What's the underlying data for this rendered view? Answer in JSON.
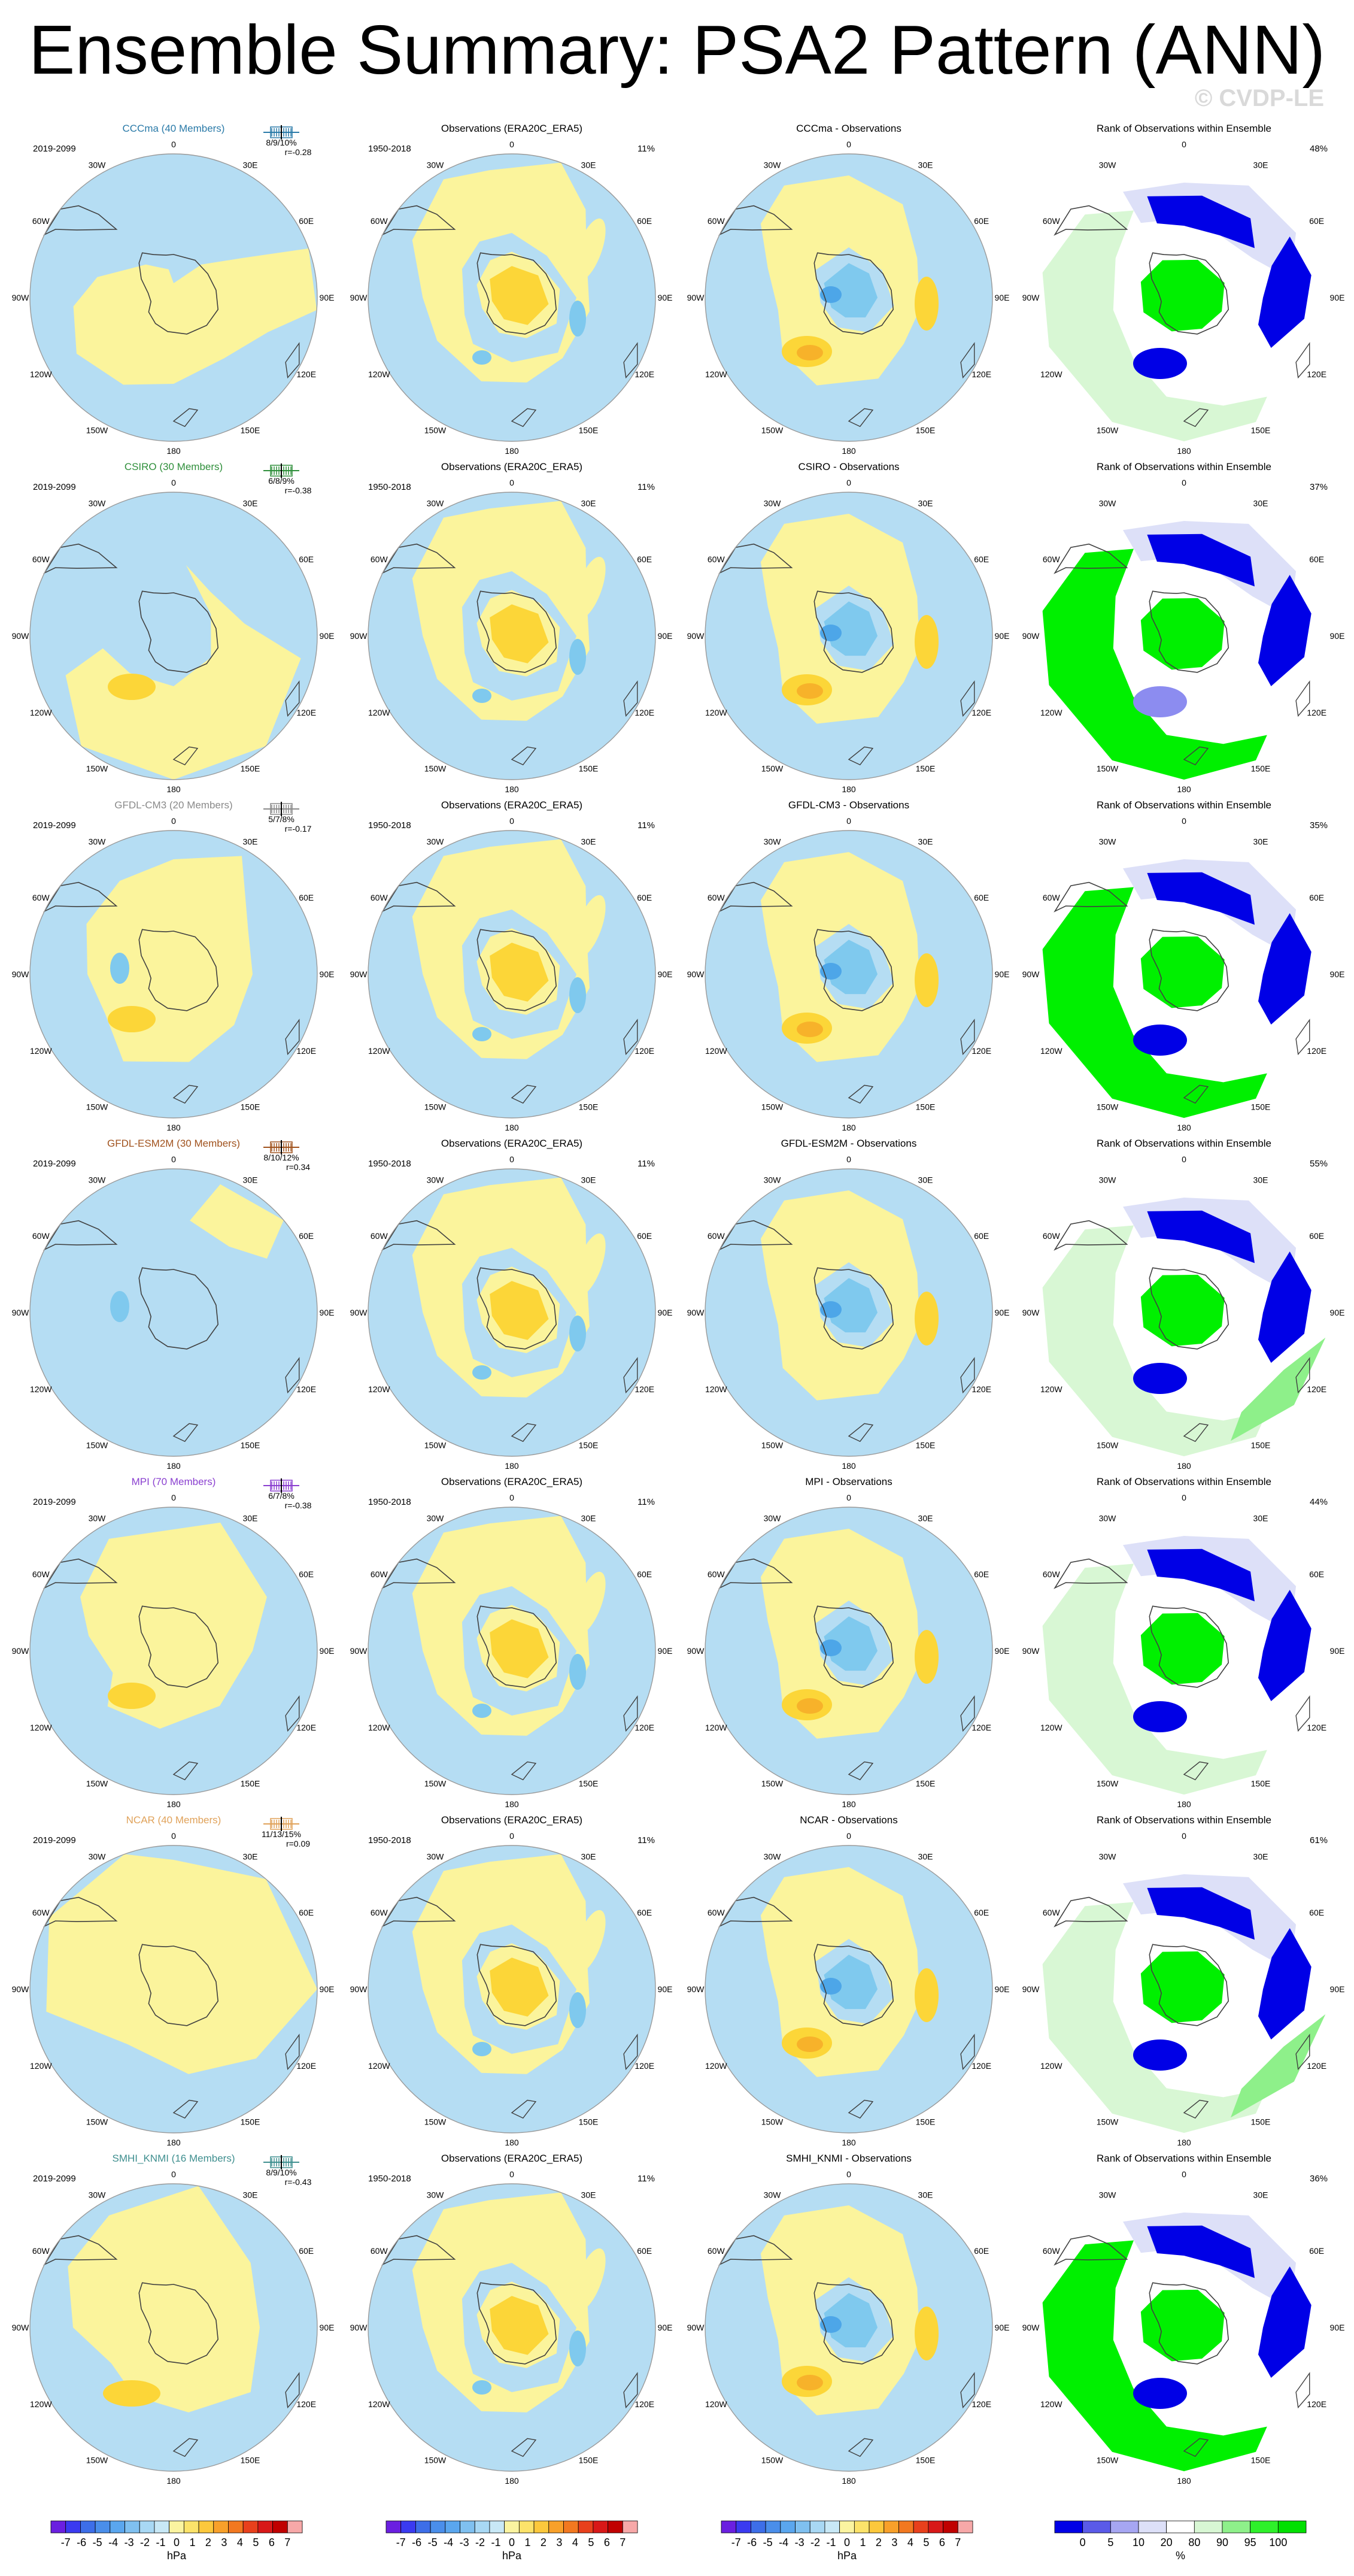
{
  "title": "Ensemble Summary: PSA2 Pattern (ANN)",
  "watermark": "© CVDP-LE",
  "colors": {
    "neg1": "#b5ddf3",
    "neg2": "#7fc9ee",
    "neg3": "#4da6e8",
    "pos1": "#fbf49c",
    "pos2": "#fcd638",
    "pos3": "#f7b22a",
    "rank_low": "#0000e6",
    "rank_lowmid": "#8c8cf0",
    "rank_pale": "#dde0f8",
    "rank_palegreen": "#d8f7d4",
    "rank_midgreen": "#8ef08a",
    "rank_high": "#00f000",
    "land_outline": "#404040"
  },
  "longitude_labels": [
    "0",
    "30E",
    "60E",
    "90E",
    "120E",
    "150E",
    "180",
    "150W",
    "120W",
    "90W",
    "60W",
    "30W"
  ],
  "observation_title": "Observations (ERA20C_ERA5)",
  "observation_years": "1950-2018",
  "rank_title": "Rank of Observations within Ensemble",
  "rows": [
    {
      "model": "CCCma (40 Members)",
      "model_color": "#2a7aa8",
      "years": "2019-2099",
      "stats": "8/9/10%",
      "r": "r=-0.28",
      "obs_pct": "11%",
      "diff_title": "CCCma - Observations",
      "rank_pct": "48%"
    },
    {
      "model": "CSIRO (30 Members)",
      "model_color": "#2f8f3b",
      "years": "2019-2099",
      "stats": "6/8/9%",
      "r": "r=-0.38",
      "obs_pct": "11%",
      "diff_title": "CSIRO - Observations",
      "rank_pct": "37%"
    },
    {
      "model": "GFDL-CM3 (20 Members)",
      "model_color": "#8a8a8a",
      "years": "2019-2099",
      "stats": "5/7/8%",
      "r": "r=-0.17",
      "obs_pct": "11%",
      "diff_title": "GFDL-CM3 - Observations",
      "rank_pct": "35%"
    },
    {
      "model": "GFDL-ESM2M (30 Members)",
      "model_color": "#a0521d",
      "years": "2019-2099",
      "stats": "8/10/12%",
      "r": "r=0.34",
      "obs_pct": "11%",
      "diff_title": "GFDL-ESM2M - Observations",
      "rank_pct": "55%"
    },
    {
      "model": "MPI (70 Members)",
      "model_color": "#8a3fd0",
      "years": "2019-2099",
      "stats": "6/7/8%",
      "r": "r=-0.38",
      "obs_pct": "11%",
      "diff_title": "MPI - Observations",
      "rank_pct": "44%"
    },
    {
      "model": "NCAR (40 Members)",
      "model_color": "#e0a25a",
      "years": "2019-2099",
      "stats": "11/13/15%",
      "r": "r=0.09",
      "obs_pct": "11%",
      "diff_title": "NCAR - Observations",
      "rank_pct": "61%"
    },
    {
      "model": "SMHI_KNMI (16 Members)",
      "model_color": "#3f8f8f",
      "years": "2019-2099",
      "stats": "8/9/10%",
      "r": "r=-0.43",
      "obs_pct": "11%",
      "diff_title": "SMHI_KNMI - Observations",
      "rank_pct": "36%"
    }
  ],
  "colorbar_hpa": {
    "labels": [
      "-7",
      "-6",
      "-5",
      "-4",
      "-3",
      "-2",
      "-1",
      "0",
      "1",
      "2",
      "3",
      "4",
      "5",
      "6",
      "7"
    ],
    "unit": "hPa",
    "colors": [
      "#6a1fe0",
      "#3a3af0",
      "#3d6ee8",
      "#4a8eea",
      "#5aa6ee",
      "#7fc0f0",
      "#a8d8f4",
      "#c8e8f6",
      "#fbf4a0",
      "#fce36a",
      "#fcc83c",
      "#f8a02a",
      "#f27820",
      "#e8401c",
      "#d81818",
      "#c00000",
      "#f7a8a8"
    ]
  },
  "colorbar_rank": {
    "labels": [
      "0",
      "5",
      "10",
      "20",
      "80",
      "90",
      "95",
      "100"
    ],
    "unit": "%",
    "colors": [
      "#0000e6",
      "#5a5ae8",
      "#a6a6f2",
      "#dde0f8",
      "#ffffff",
      "#d8f7d4",
      "#8ef08a",
      "#2ef02a",
      "#00e000"
    ]
  }
}
